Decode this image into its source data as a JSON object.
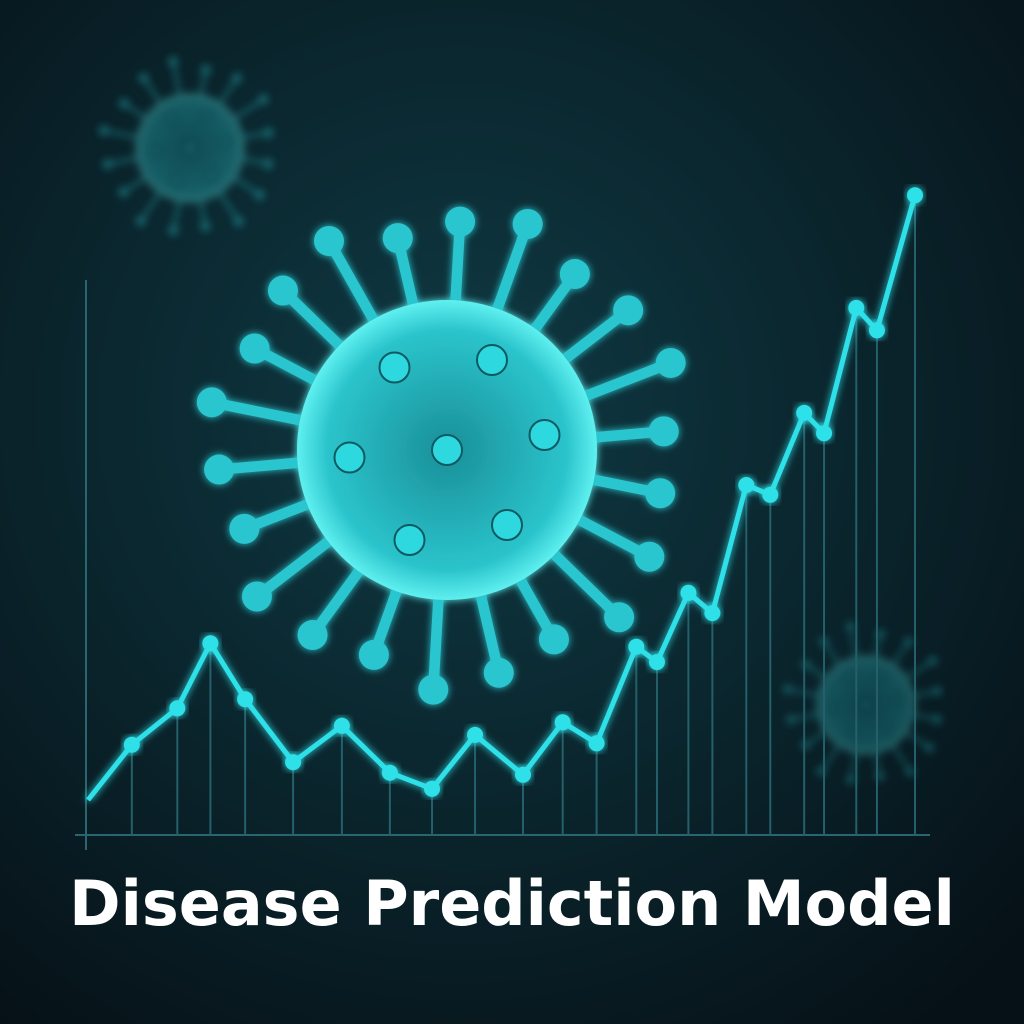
{
  "chart_data": {
    "type": "line",
    "title": "Disease Prediction Model",
    "x": [
      0,
      5.3,
      10.8,
      14.8,
      19.0,
      24.8,
      30.7,
      36.5,
      41.6,
      46.8,
      52.6,
      57.4,
      61.5,
      66.3,
      68.8,
      72.6,
      75.5,
      79.6,
      82.5,
      86.6,
      89.0,
      92.9,
      95.4,
      100
    ],
    "values": [
      5,
      12.9,
      18.1,
      27.4,
      19.4,
      10.4,
      15.6,
      8.9,
      6.6,
      14.3,
      8.6,
      16.1,
      13.1,
      26.9,
      24.7,
      34.6,
      31.7,
      50,
      48.6,
      60.3,
      57.4,
      75.3,
      72.1,
      91.4
    ],
    "color": "#2fe0e8",
    "xlim": [
      0,
      100
    ],
    "ylim": [
      0,
      100
    ]
  }
}
